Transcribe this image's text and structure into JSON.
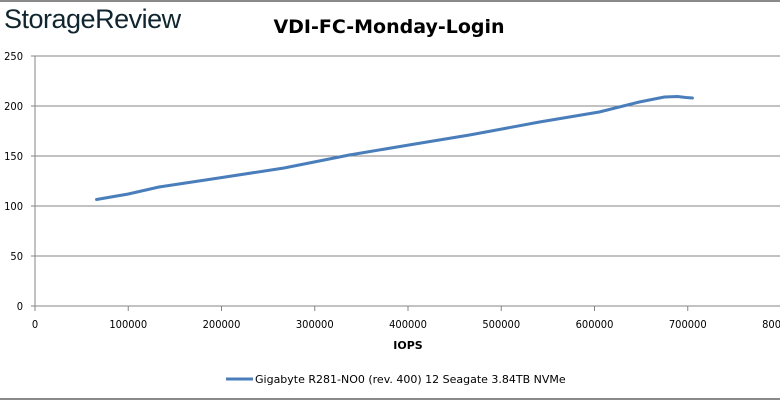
{
  "brand": "StorageReview",
  "chart_data": {
    "type": "line",
    "title": "VDI-FC-Monday-Login",
    "xlabel": "IOPS",
    "ylabel": "",
    "xlim": [
      0,
      800000
    ],
    "ylim": [
      0,
      250
    ],
    "xticks": [
      "0",
      "100000",
      "200000",
      "300000",
      "400000",
      "500000",
      "600000",
      "700000",
      "800000"
    ],
    "yticks": [
      "0",
      "50",
      "100",
      "150",
      "200",
      "250"
    ],
    "grid": "horizontal",
    "legend_position": "bottom",
    "series": [
      {
        "name": "Gigabyte R281-NO0 (rev. 400) 12 Seagate 3.84TB NVMe",
        "color": "#4a7ebb",
        "x": [
          66000,
          100000,
          133000,
          197000,
          267000,
          337000,
          401000,
          466000,
          541000,
          605000,
          648000,
          675000,
          689000,
          698000,
          705000
        ],
        "y": [
          106.5,
          112,
          119,
          128,
          138,
          151,
          161,
          171,
          184,
          194,
          204,
          209,
          209.5,
          208.5,
          208
        ]
      }
    ]
  }
}
